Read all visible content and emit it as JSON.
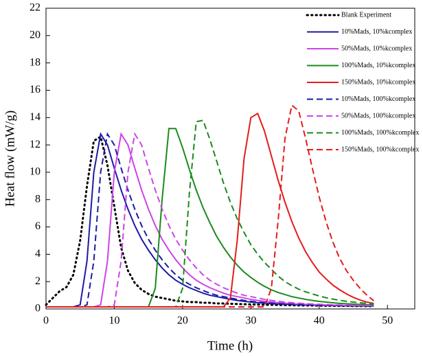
{
  "chart_data": {
    "type": "line",
    "xlabel": "Time (h)",
    "ylabel": "Heat flow (mW/g)",
    "xlim": [
      0,
      54
    ],
    "ylim": [
      0,
      22
    ],
    "xticks": [
      0,
      10,
      20,
      30,
      40,
      50
    ],
    "yticks": [
      0,
      2,
      4,
      6,
      8,
      10,
      12,
      14,
      16,
      18,
      20,
      22
    ],
    "legend": "upper right",
    "x": [
      0,
      1,
      2,
      3,
      4,
      5,
      6,
      7,
      8,
      9,
      10,
      11,
      12,
      13,
      14,
      15,
      16,
      17,
      18,
      19,
      20,
      21,
      22,
      23,
      24,
      25,
      26,
      27,
      28,
      29,
      30,
      31,
      32,
      33,
      34,
      35,
      36,
      37,
      38,
      39,
      40,
      41,
      42,
      43,
      44,
      45,
      46,
      47,
      48
    ],
    "series": [
      {
        "name": "Blank Experiment",
        "color": "#000000",
        "dash": "dotted",
        "values": [
          0.3,
          0.8,
          1.3,
          1.6,
          2.5,
          5,
          9,
          12.3,
          12.6,
          10.5,
          7.5,
          4.5,
          2.8,
          1.9,
          1.4,
          1.1,
          0.9,
          0.8,
          0.7,
          0.6,
          0.55,
          0.5,
          0.5,
          0.45,
          0.45,
          0.4,
          0.4,
          0.38,
          0.36,
          0.35,
          0.33,
          0.32,
          0.3,
          0.3,
          0.29,
          0.28,
          0.27,
          0.26,
          0.25,
          0.25,
          0.24,
          0.23,
          0.23,
          0.22,
          0.22,
          0.21,
          0.21,
          0.2,
          0.2
        ]
      },
      {
        "name": "10%Mads, 10%kcomplex",
        "color": "#1a1aa6",
        "dash": "solid",
        "values": [
          0.15,
          0.15,
          0.15,
          0.15,
          0.15,
          0.3,
          3.5,
          10,
          12.8,
          12,
          10.3,
          8.7,
          7.3,
          6.1,
          5.1,
          4.3,
          3.6,
          3.0,
          2.5,
          2.1,
          1.8,
          1.55,
          1.35,
          1.15,
          1.0,
          0.9,
          0.8,
          0.7,
          0.62,
          0.56,
          0.5,
          0.46,
          0.42,
          0.39,
          0.36,
          0.34,
          0.32,
          0.3,
          0.29,
          0.28,
          0.27,
          0.26,
          0.25,
          0.24,
          0.23,
          0.22,
          0.22,
          0.21,
          0.2
        ]
      },
      {
        "name": "50%Mads, 10%kcomplex",
        "color": "#cc44e6",
        "dash": "solid",
        "values": [
          0.15,
          0.15,
          0.15,
          0.15,
          0.15,
          0.15,
          0.15,
          0.15,
          0.3,
          3.5,
          10,
          12.8,
          12,
          10.3,
          8.7,
          7.3,
          6.1,
          5.1,
          4.3,
          3.6,
          3.0,
          2.5,
          2.1,
          1.8,
          1.55,
          1.35,
          1.15,
          1.0,
          0.9,
          0.8,
          0.7,
          0.62,
          0.56,
          0.5,
          0.46,
          0.42,
          0.39,
          0.36,
          0.34,
          0.32,
          0.3,
          0.29,
          0.28,
          0.27,
          0.26,
          0.25,
          0.24,
          0.23,
          0.22
        ]
      },
      {
        "name": "100%Mads, 10%kcomplex",
        "color": "#1a8a1a",
        "dash": "solid",
        "values": [
          0.15,
          0.15,
          0.15,
          0.15,
          0.15,
          0.15,
          0.15,
          0.15,
          0.15,
          0.15,
          0.15,
          0.15,
          0.15,
          0.15,
          0.15,
          0.15,
          1.5,
          8,
          13.2,
          13.2,
          11.8,
          10.2,
          8.7,
          7.4,
          6.3,
          5.3,
          4.5,
          3.8,
          3.2,
          2.7,
          2.3,
          1.95,
          1.65,
          1.4,
          1.2,
          1.05,
          0.9,
          0.8,
          0.7,
          0.62,
          0.55,
          0.5,
          0.45,
          0.41,
          0.38,
          0.35,
          0.33,
          0.31,
          0.3
        ]
      },
      {
        "name": "150%Mads, 10%kcomplex",
        "color": "#e61a1a",
        "dash": "solid",
        "values": [
          0.15,
          0.15,
          0.15,
          0.15,
          0.15,
          0.15,
          0.15,
          0.15,
          0.15,
          0.15,
          0.15,
          0.15,
          0.15,
          0.15,
          0.15,
          0.15,
          0.15,
          0.15,
          0.15,
          0.15,
          0.15,
          0.15,
          0.15,
          0.15,
          0.15,
          0.15,
          0.15,
          0.8,
          5,
          11,
          14,
          14.3,
          13.0,
          11.2,
          9.4,
          7.8,
          6.4,
          5.2,
          4.2,
          3.4,
          2.7,
          2.2,
          1.75,
          1.4,
          1.1,
          0.85,
          0.65,
          0.5,
          0.4
        ]
      },
      {
        "name": "10%Mads, 100%kcomplex",
        "color": "#1a1aa6",
        "dash": "dashed",
        "values": [
          0.15,
          0.15,
          0.15,
          0.15,
          0.15,
          0.15,
          0.3,
          3.5,
          10,
          12.8,
          12,
          10.3,
          8.7,
          7.3,
          6.1,
          5.1,
          4.3,
          3.6,
          3.0,
          2.5,
          2.1,
          1.8,
          1.55,
          1.35,
          1.15,
          1.0,
          0.9,
          0.8,
          0.7,
          0.62,
          0.56,
          0.5,
          0.46,
          0.42,
          0.39,
          0.36,
          0.34,
          0.32,
          0.3,
          0.29,
          0.28,
          0.27,
          0.26,
          0.25,
          0.24,
          0.23,
          0.22,
          0.22,
          0.21
        ]
      },
      {
        "name": "50%Mads, 100%kcomplex",
        "color": "#cc44e6",
        "dash": "dashed",
        "values": [
          0.15,
          0.15,
          0.15,
          0.15,
          0.15,
          0.15,
          0.15,
          0.15,
          0.15,
          0.15,
          0.3,
          3.5,
          10,
          12.8,
          12,
          10.3,
          8.7,
          7.3,
          6.1,
          5.1,
          4.3,
          3.6,
          3.0,
          2.5,
          2.1,
          1.8,
          1.55,
          1.35,
          1.15,
          1.0,
          0.9,
          0.8,
          0.7,
          0.62,
          0.56,
          0.5,
          0.46,
          0.42,
          0.39,
          0.36,
          0.34,
          0.32,
          0.3,
          0.29,
          0.28,
          0.27,
          0.26,
          0.25,
          0.24
        ]
      },
      {
        "name": "100%Mads, 100%kcomplex",
        "color": "#1a8a1a",
        "dash": "dashed",
        "values": [
          0.15,
          0.15,
          0.15,
          0.15,
          0.15,
          0.15,
          0.15,
          0.15,
          0.15,
          0.15,
          0.15,
          0.15,
          0.15,
          0.15,
          0.15,
          0.15,
          0.15,
          0.15,
          0.15,
          0.15,
          1.5,
          8.5,
          13.7,
          13.8,
          12.4,
          10.8,
          9.2,
          7.8,
          6.6,
          5.6,
          4.7,
          4.0,
          3.4,
          2.9,
          2.4,
          2.0,
          1.7,
          1.45,
          1.25,
          1.1,
          0.95,
          0.82,
          0.72,
          0.63,
          0.56,
          0.5,
          0.45,
          0.41,
          0.38
        ]
      },
      {
        "name": "150%Mads, 100%kcomplex",
        "color": "#e61a1a",
        "dash": "dashed",
        "values": [
          0.15,
          0.15,
          0.15,
          0.15,
          0.15,
          0.15,
          0.15,
          0.15,
          0.15,
          0.15,
          0.15,
          0.15,
          0.15,
          0.15,
          0.15,
          0.15,
          0.15,
          0.15,
          0.15,
          0.15,
          0.15,
          0.15,
          0.15,
          0.15,
          0.15,
          0.15,
          0.15,
          0.15,
          0.15,
          0.15,
          0.15,
          0.15,
          0.15,
          1.5,
          6.5,
          12.5,
          14.9,
          14.5,
          12.5,
          10.3,
          8.2,
          6.4,
          4.9,
          3.7,
          2.8,
          2.1,
          1.5,
          1.0,
          0.6
        ]
      }
    ]
  }
}
